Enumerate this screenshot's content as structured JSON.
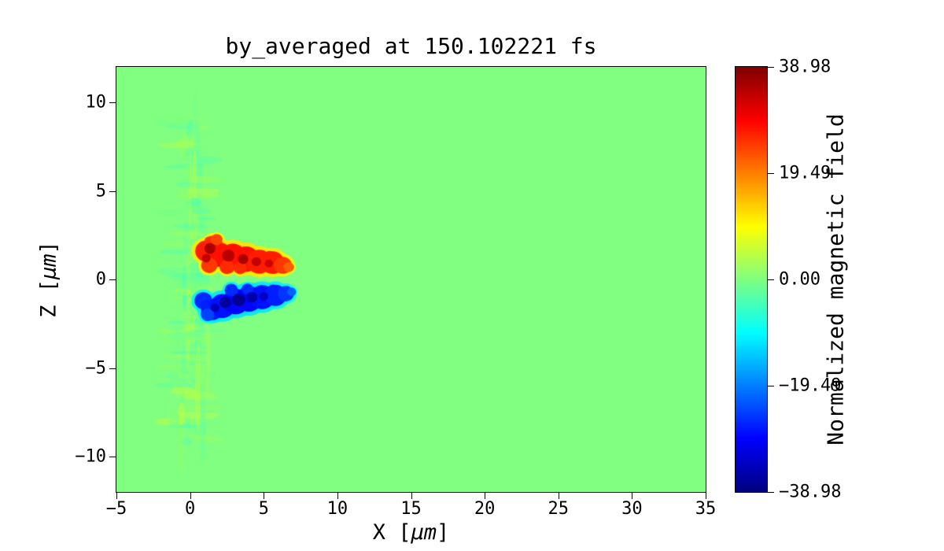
{
  "chart_data": {
    "type": "heatmap",
    "title": "by_averaged at 150.102221 fs",
    "xlabel": "X [μm]",
    "ylabel": "Z [μm]",
    "xlim": [
      -5,
      35
    ],
    "ylim": [
      -12,
      12
    ],
    "x_ticks": {
      "values": [
        -5,
        0,
        5,
        10,
        15,
        20,
        25,
        30,
        35
      ],
      "labels": [
        "−5",
        "0",
        "5",
        "10",
        "15",
        "20",
        "25",
        "30",
        "35"
      ]
    },
    "y_ticks": {
      "values": [
        10,
        5,
        0,
        -5,
        -10
      ],
      "labels": [
        "10",
        "5",
        "0",
        "−5",
        "−10"
      ]
    },
    "axis_labels": {
      "x_prefix": "X [",
      "x_unit": "μm",
      "x_suffix": "]",
      "y_prefix": "Z [",
      "y_unit": "μm",
      "y_suffix": "]"
    },
    "colorbar": {
      "label": "Normalized magnetic field",
      "colormap": "jet",
      "vmin": -38.98,
      "vmax": 38.98,
      "tick_values": [
        38.98,
        19.49,
        0,
        -19.49,
        -38.98
      ],
      "tick_labels": [
        "38.98",
        "19.49",
        "0.00",
        "−19.49",
        "−38.98"
      ]
    },
    "grid": false,
    "legend": "none",
    "field": {
      "background_value": 0,
      "positive_lobe": {
        "description": "red/orange region above z=0, x ≈ 0.7–6.9 μm, z ≈ 0.3–2.6 μm, peak ≈ +36",
        "splats": [
          [
            1.1,
            1.6,
            0.75,
            27
          ],
          [
            1.6,
            2.0,
            0.6,
            26
          ],
          [
            2.0,
            1.4,
            0.85,
            28
          ],
          [
            2.9,
            1.3,
            0.9,
            28
          ],
          [
            3.8,
            1.15,
            0.9,
            28
          ],
          [
            4.7,
            1.0,
            0.85,
            27
          ],
          [
            5.6,
            0.95,
            0.8,
            27
          ],
          [
            6.3,
            0.8,
            0.6,
            25
          ],
          [
            1.3,
            0.8,
            0.55,
            25
          ],
          [
            2.5,
            0.7,
            0.5,
            26
          ],
          [
            1.8,
            2.25,
            0.4,
            24
          ],
          [
            3.4,
            0.65,
            0.45,
            26
          ],
          [
            6.7,
            0.7,
            0.35,
            22
          ]
        ],
        "cores": [
          [
            1.35,
            1.75,
            0.38,
            36
          ],
          [
            2.6,
            1.35,
            0.42,
            35
          ],
          [
            3.6,
            1.15,
            0.35,
            36
          ],
          [
            4.5,
            1.0,
            0.32,
            34
          ],
          [
            5.35,
            0.9,
            0.28,
            33
          ],
          [
            1.1,
            1.2,
            0.3,
            34
          ]
        ]
      },
      "negative_lobe": {
        "description": "blue region below z=0, x ≈ 0.5–7.0 μm, z ≈ −0.3…−2.3 μm, peak ≈ −38",
        "splats": [
          [
            0.9,
            -1.2,
            0.6,
            -26
          ],
          [
            1.5,
            -1.7,
            0.75,
            -27
          ],
          [
            2.2,
            -1.5,
            0.85,
            -28
          ],
          [
            3.1,
            -1.25,
            0.9,
            -29
          ],
          [
            4.0,
            -1.1,
            0.9,
            -29
          ],
          [
            4.9,
            -1.0,
            0.85,
            -28
          ],
          [
            5.8,
            -0.9,
            0.75,
            -27
          ],
          [
            6.5,
            -0.8,
            0.55,
            -25
          ],
          [
            1.2,
            -2.0,
            0.45,
            -24
          ],
          [
            2.8,
            -0.6,
            0.45,
            -26
          ],
          [
            3.9,
            -0.55,
            0.4,
            -26
          ],
          [
            6.9,
            -0.7,
            0.3,
            -22
          ]
        ],
        "cores": [
          [
            2.4,
            -1.3,
            0.4,
            -37
          ],
          [
            3.3,
            -1.15,
            0.45,
            -38
          ],
          [
            4.2,
            -1.0,
            0.38,
            -36
          ],
          [
            5.0,
            -0.95,
            0.3,
            -34
          ],
          [
            1.7,
            -1.6,
            0.3,
            -35
          ]
        ]
      },
      "wake": {
        "description": "faint turbulent streaks around x ≈ −1.5…1.6 μm spanning z ≈ −9…9 μm, amplitude ≈ ±5",
        "seed": 11,
        "count": 170,
        "x_min": -1.6,
        "x_max": 1.6,
        "z_min": -9.2,
        "z_max": 9.2,
        "amplitude": 5,
        "bands": [
          [
            0.45,
            0,
            0.5,
            9.0,
            -2.5,
            0.3
          ],
          [
            0.2,
            0,
            0.35,
            8.5,
            3.0,
            0.25
          ]
        ]
      }
    }
  }
}
